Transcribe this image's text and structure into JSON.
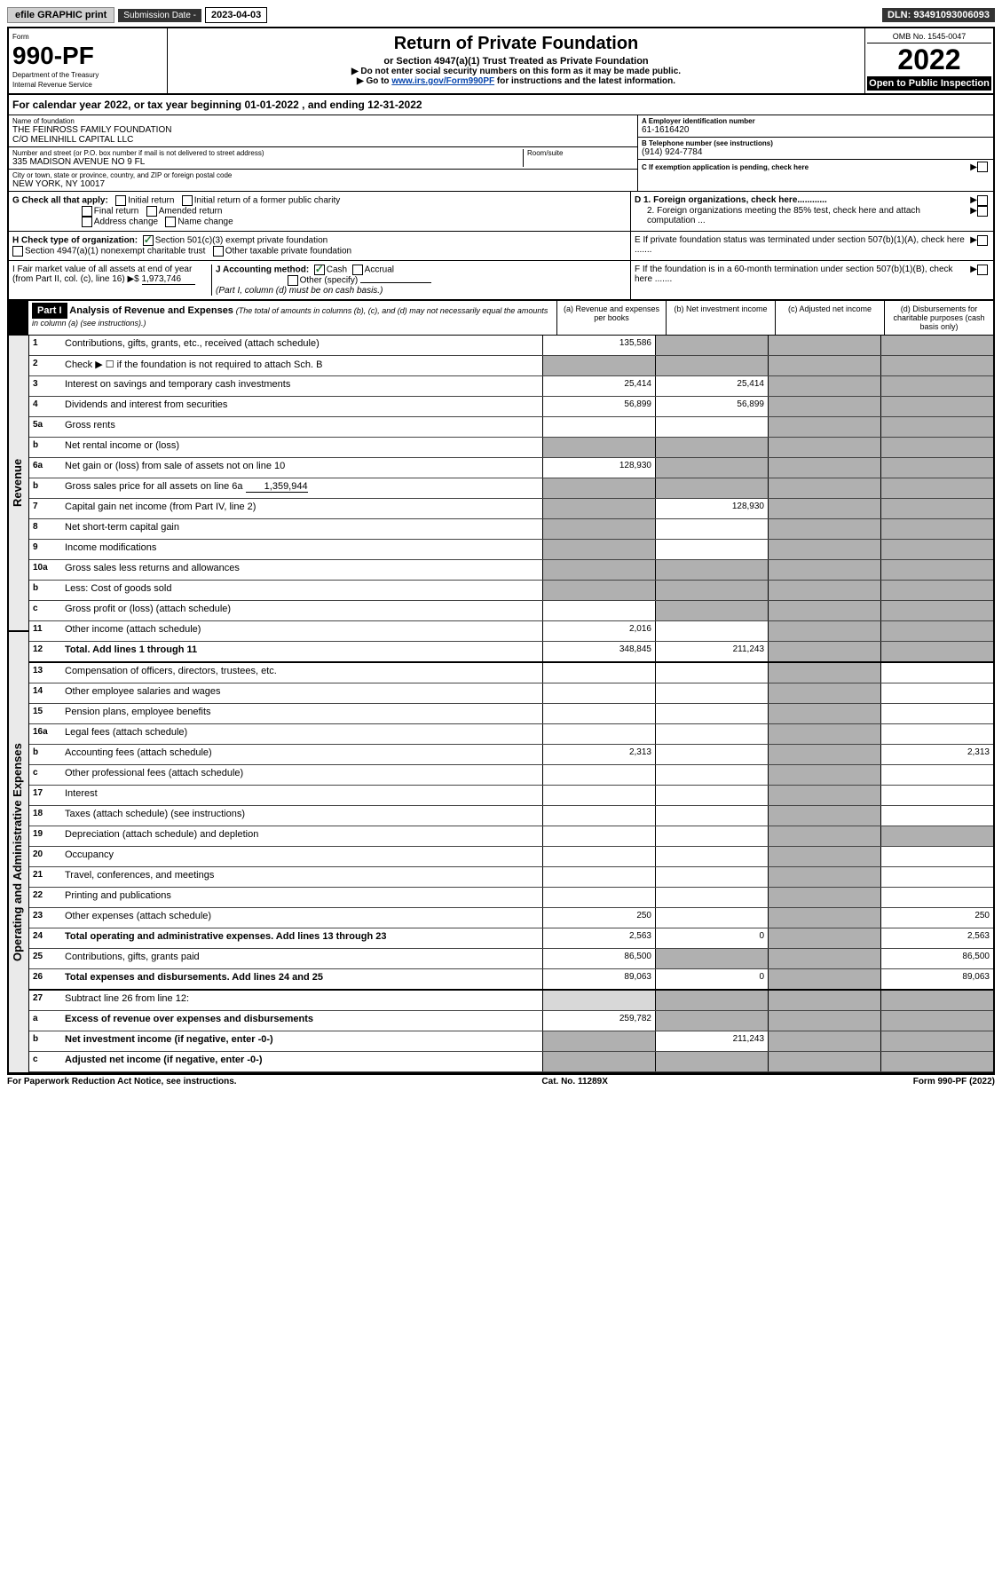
{
  "top": {
    "efile": "efile GRAPHIC print",
    "sub_label": "Submission Date - ",
    "sub_date": "2023-04-03",
    "dln": "DLN: 93491093006093"
  },
  "header": {
    "form_label": "Form",
    "form_number": "990-PF",
    "dept": "Department of the Treasury",
    "irs": "Internal Revenue Service",
    "title": "Return of Private Foundation",
    "subtitle": "or Section 4947(a)(1) Trust Treated as Private Foundation",
    "instr1": "▶ Do not enter social security numbers on this form as it may be made public.",
    "instr2_prefix": "▶ Go to ",
    "instr2_link": "www.irs.gov/Form990PF",
    "instr2_suffix": " for instructions and the latest information.",
    "omb": "OMB No. 1545-0047",
    "year": "2022",
    "open": "Open to Public Inspection"
  },
  "cal_year": "For calendar year 2022, or tax year beginning 01-01-2022           , and ending 12-31-2022",
  "entity": {
    "name_lbl": "Name of foundation",
    "name1": "THE FEINROSS FAMILY FOUNDATION",
    "name2": "C/O MELINHILL CAPITAL LLC",
    "addr_lbl": "Number and street (or P.O. box number if mail is not delivered to street address)",
    "addr": "335 MADISON AVENUE NO 9 FL",
    "room_lbl": "Room/suite",
    "city_lbl": "City or town, state or province, country, and ZIP or foreign postal code",
    "city": "NEW YORK, NY  10017",
    "ein_lbl": "A Employer identification number",
    "ein": "61-1616420",
    "phone_lbl": "B Telephone number (see instructions)",
    "phone": "(914) 924-7784",
    "c_lbl": "C If exemption application is pending, check here"
  },
  "checks": {
    "g_label": "G Check all that apply:",
    "g_initial": "Initial return",
    "g_initial_former": "Initial return of a former public charity",
    "g_final": "Final return",
    "g_amended": "Amended return",
    "g_addr": "Address change",
    "g_name": "Name change",
    "h_label": "H Check type of organization:",
    "h_501c3": "Section 501(c)(3) exempt private foundation",
    "h_4947": "Section 4947(a)(1) nonexempt charitable trust",
    "h_other": "Other taxable private foundation",
    "i_label": "I Fair market value of all assets at end of year (from Part II, col. (c), line 16) ▶$",
    "i_value": "1,973,746",
    "j_label": "J Accounting method:",
    "j_cash": "Cash",
    "j_accrual": "Accrual",
    "j_other": "Other (specify)",
    "j_note": "(Part I, column (d) must be on cash basis.)",
    "d1": "D 1. Foreign organizations, check here............",
    "d2": "2. Foreign organizations meeting the 85% test, check here and attach computation ...",
    "e": "E  If private foundation status was terminated under section 507(b)(1)(A), check here .......",
    "f": "F  If the foundation is in a 60-month termination under section 507(b)(1)(B), check here .......",
    "arrow": "▶"
  },
  "part1": {
    "label": "Part I",
    "title": "Analysis of Revenue and Expenses",
    "note": "(The total of amounts in columns (b), (c), and (d) may not necessarily equal the amounts in column (a) (see instructions).)",
    "col_a": "(a) Revenue and expenses per books",
    "col_b": "(b) Net investment income",
    "col_c": "(c) Adjusted net income",
    "col_d": "(d) Disbursements for charitable purposes (cash basis only)",
    "sidebar_rev": "Revenue",
    "sidebar_exp": "Operating and Administrative Expenses"
  },
  "rows": {
    "1": {
      "n": "1",
      "d": "Contributions, gifts, grants, etc., received (attach schedule)",
      "a": "135,586"
    },
    "2": {
      "n": "2",
      "d": "Check ▶ ☐ if the foundation is not required to attach Sch. B"
    },
    "3": {
      "n": "3",
      "d": "Interest on savings and temporary cash investments",
      "a": "25,414",
      "b": "25,414"
    },
    "4": {
      "n": "4",
      "d": "Dividends and interest from securities",
      "a": "56,899",
      "b": "56,899"
    },
    "5a": {
      "n": "5a",
      "d": "Gross rents"
    },
    "5b": {
      "n": "b",
      "d": "Net rental income or (loss)"
    },
    "6a": {
      "n": "6a",
      "d": "Net gain or (loss) from sale of assets not on line 10",
      "a": "128,930"
    },
    "6b": {
      "n": "b",
      "d": "Gross sales price for all assets on line 6a",
      "inline": "1,359,944"
    },
    "7": {
      "n": "7",
      "d": "Capital gain net income (from Part IV, line 2)",
      "b": "128,930"
    },
    "8": {
      "n": "8",
      "d": "Net short-term capital gain"
    },
    "9": {
      "n": "9",
      "d": "Income modifications"
    },
    "10a": {
      "n": "10a",
      "d": "Gross sales less returns and allowances"
    },
    "10b": {
      "n": "b",
      "d": "Less: Cost of goods sold"
    },
    "10c": {
      "n": "c",
      "d": "Gross profit or (loss) (attach schedule)"
    },
    "11": {
      "n": "11",
      "d": "Other income (attach schedule)",
      "a": "2,016"
    },
    "12": {
      "n": "12",
      "d": "Total. Add lines 1 through 11",
      "a": "348,845",
      "b": "211,243",
      "bold": true
    },
    "13": {
      "n": "13",
      "d": "Compensation of officers, directors, trustees, etc."
    },
    "14": {
      "n": "14",
      "d": "Other employee salaries and wages"
    },
    "15": {
      "n": "15",
      "d": "Pension plans, employee benefits"
    },
    "16a": {
      "n": "16a",
      "d": "Legal fees (attach schedule)"
    },
    "16b": {
      "n": "b",
      "d": "Accounting fees (attach schedule)",
      "a": "2,313",
      "dd": "2,313"
    },
    "16c": {
      "n": "c",
      "d": "Other professional fees (attach schedule)"
    },
    "17": {
      "n": "17",
      "d": "Interest"
    },
    "18": {
      "n": "18",
      "d": "Taxes (attach schedule) (see instructions)"
    },
    "19": {
      "n": "19",
      "d": "Depreciation (attach schedule) and depletion"
    },
    "20": {
      "n": "20",
      "d": "Occupancy"
    },
    "21": {
      "n": "21",
      "d": "Travel, conferences, and meetings"
    },
    "22": {
      "n": "22",
      "d": "Printing and publications"
    },
    "23": {
      "n": "23",
      "d": "Other expenses (attach schedule)",
      "a": "250",
      "dd": "250"
    },
    "24": {
      "n": "24",
      "d": "Total operating and administrative expenses. Add lines 13 through 23",
      "a": "2,563",
      "b": "0",
      "dd": "2,563",
      "bold": true
    },
    "25": {
      "n": "25",
      "d": "Contributions, gifts, grants paid",
      "a": "86,500",
      "dd": "86,500"
    },
    "26": {
      "n": "26",
      "d": "Total expenses and disbursements. Add lines 24 and 25",
      "a": "89,063",
      "b": "0",
      "dd": "89,063",
      "bold": true
    },
    "27": {
      "n": "27",
      "d": "Subtract line 26 from line 12:"
    },
    "27a": {
      "n": "a",
      "d": "Excess of revenue over expenses and disbursements",
      "a": "259,782",
      "bold": true
    },
    "27b": {
      "n": "b",
      "d": "Net investment income (if negative, enter -0-)",
      "b": "211,243",
      "bold": true
    },
    "27c": {
      "n": "c",
      "d": "Adjusted net income (if negative, enter -0-)",
      "bold": true
    }
  },
  "footer": {
    "left": "For Paperwork Reduction Act Notice, see instructions.",
    "mid": "Cat. No. 11289X",
    "right": "Form 990-PF (2022)"
  }
}
